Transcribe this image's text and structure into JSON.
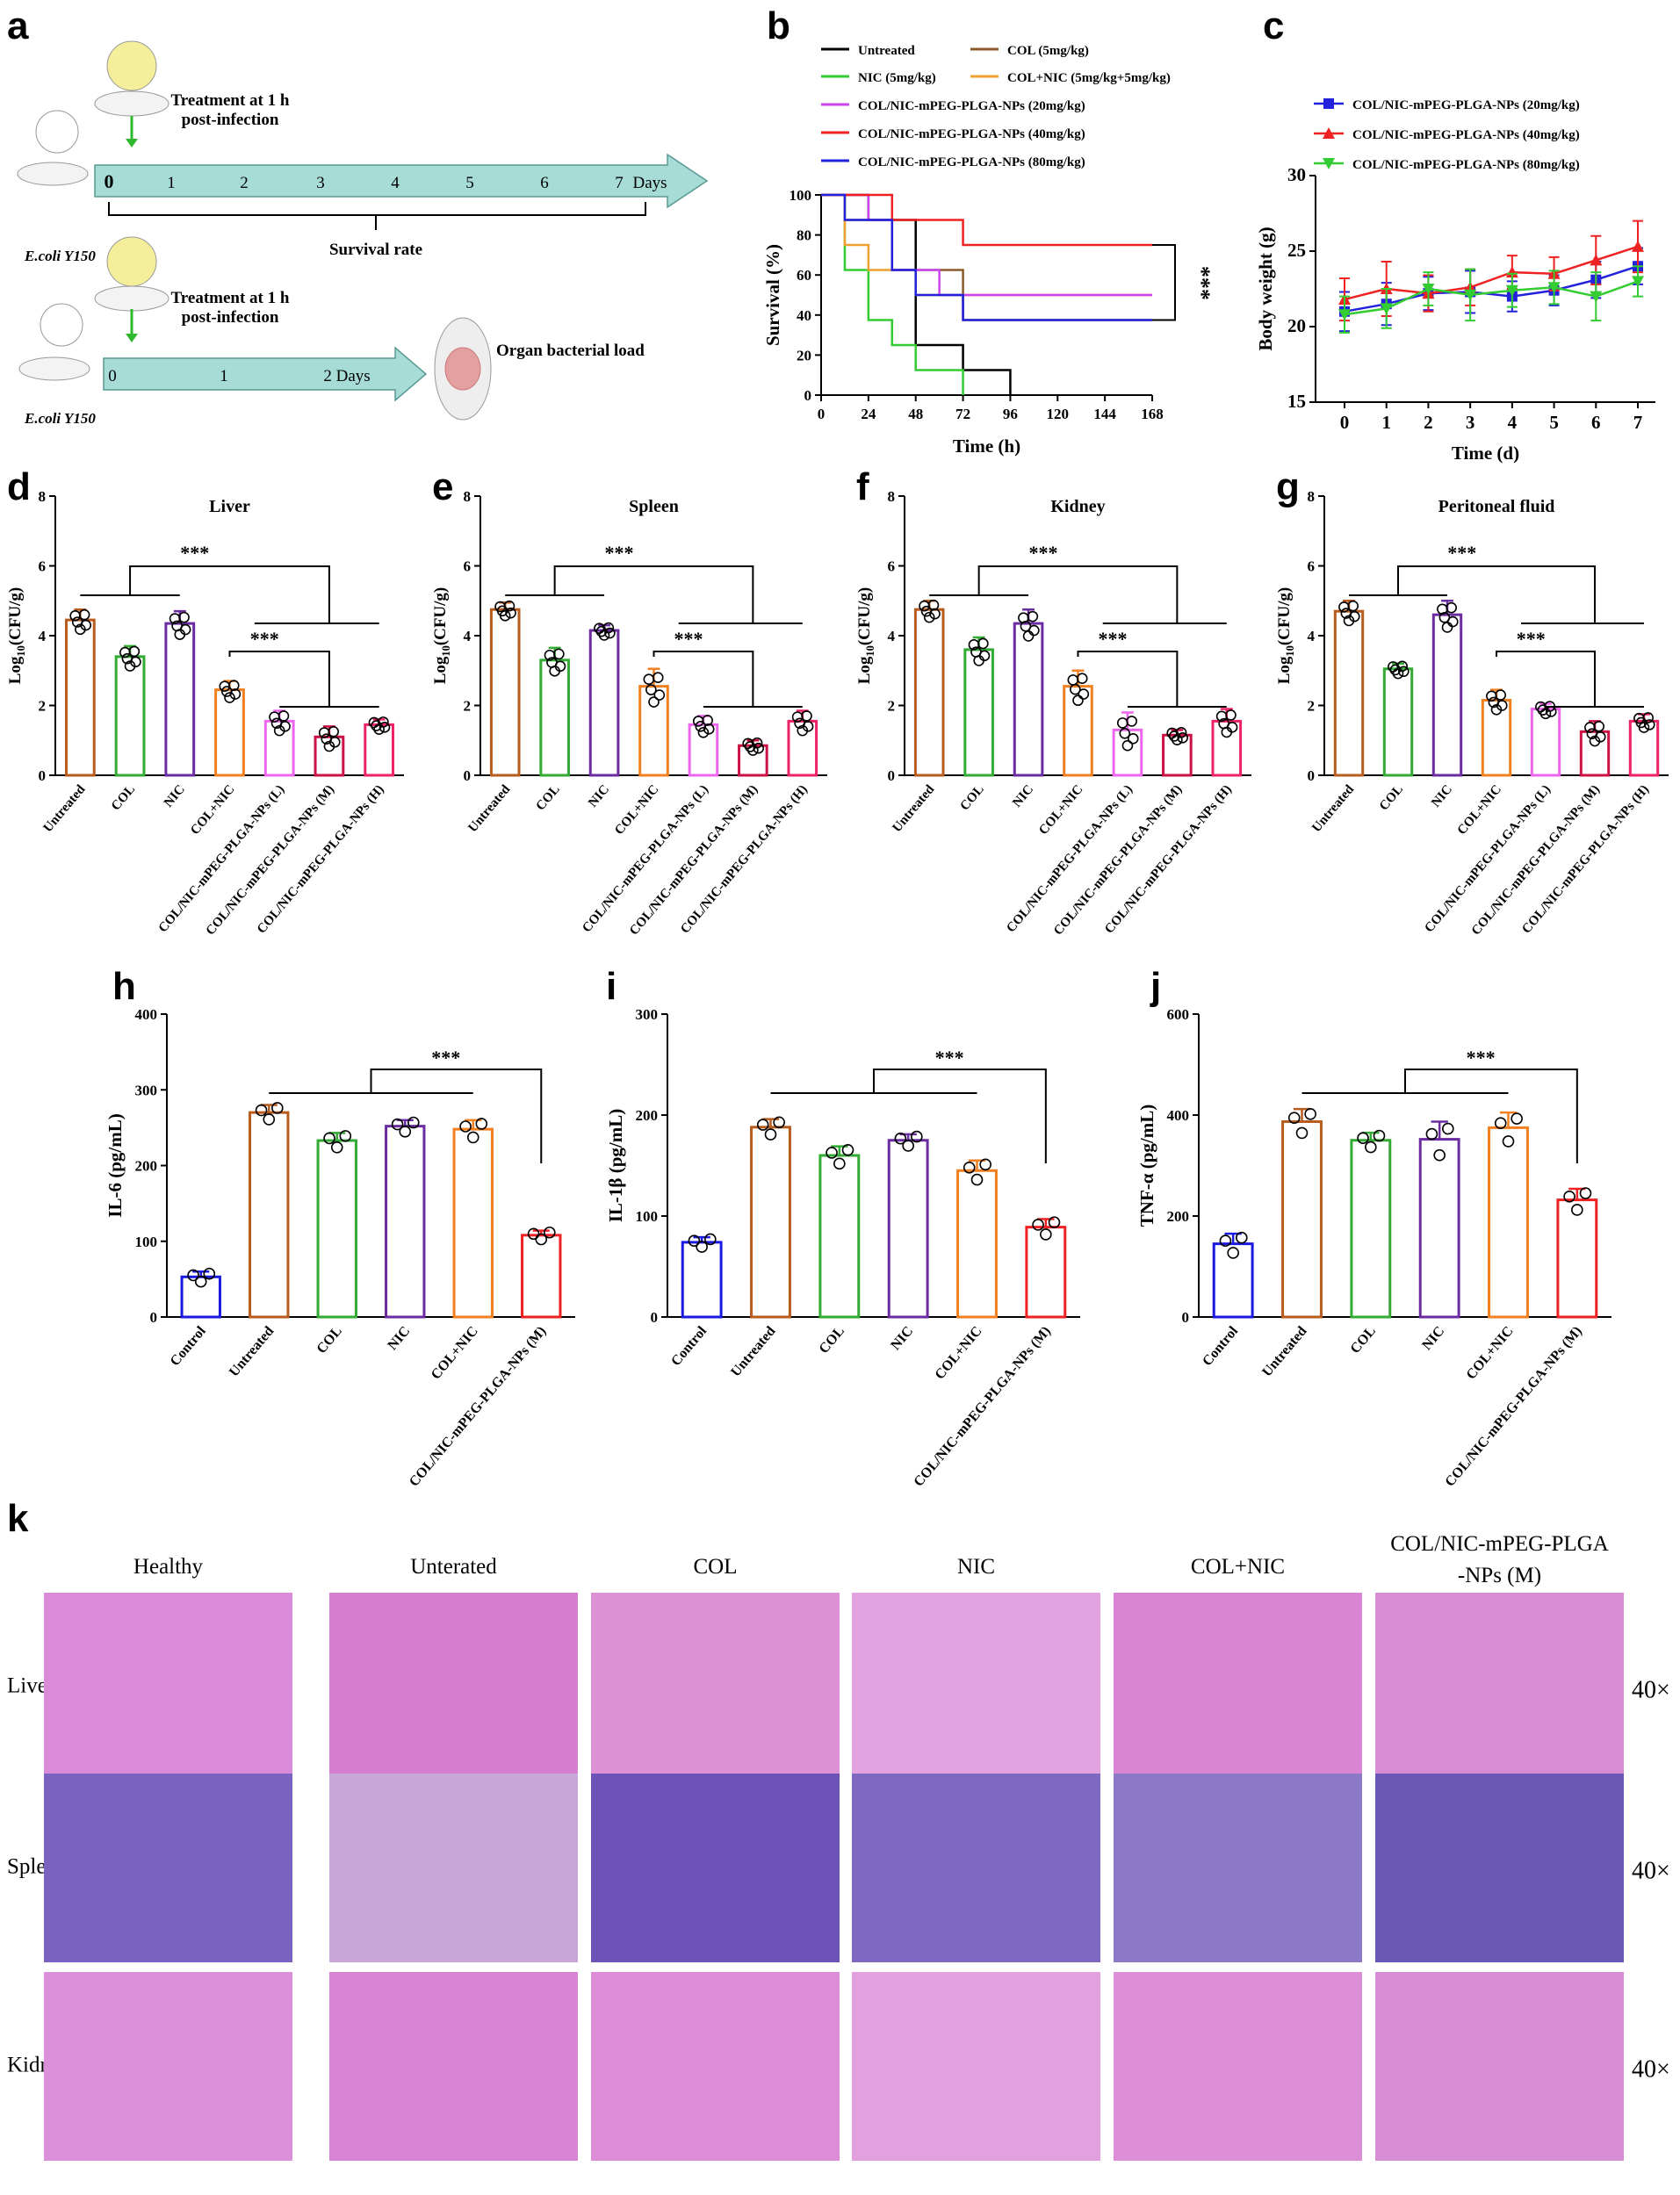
{
  "panel_labels": [
    "a",
    "b",
    "c",
    "d",
    "e",
    "f",
    "g",
    "h",
    "i",
    "j",
    "k"
  ],
  "schematic": {
    "top_treatment": "Treatment at 1 h\npost-infection",
    "top_pathogen": "E.coli Y150",
    "top_days": [
      "0",
      "1",
      "2",
      "3",
      "4",
      "5",
      "6",
      "7"
    ],
    "top_days_unit": "Days",
    "top_outcome": "Survival rate",
    "bottom_treatment": "Treatment at 1 h\npost-infection",
    "bottom_pathogen": "E.coli Y150",
    "bottom_days": [
      "0",
      "1",
      "2 Days"
    ],
    "bottom_outcome": "Organ bacterial load"
  },
  "chart_data": [
    {
      "id": "b",
      "type": "line",
      "xlabel": "Time (h)",
      "ylabel": "Survival (%)",
      "xlim": [
        0,
        168
      ],
      "ylim": [
        0,
        100
      ],
      "xticks": [
        0,
        24,
        48,
        72,
        96,
        120,
        144,
        168
      ],
      "yticks": [
        0,
        20,
        40,
        60,
        80,
        100
      ],
      "significance": "***",
      "legend_position": "top",
      "series": [
        {
          "name": "Untreated",
          "color": "#000000",
          "step": [
            [
              0,
              100
            ],
            [
              24,
              87.5
            ],
            [
              48,
              62.5
            ],
            [
              48,
              25
            ],
            [
              72,
              12.5
            ],
            [
              96,
              0
            ]
          ]
        },
        {
          "name": "COL (5mg/kg)",
          "color": "#8B5A2B",
          "step": [
            [
              0,
              100
            ],
            [
              12,
              87.5
            ],
            [
              36,
              62.5
            ],
            [
              48,
              62.5
            ],
            [
              72,
              37.5
            ],
            [
              168,
              37.5
            ]
          ]
        },
        {
          "name": "NIC (5mg/kg)",
          "color": "#33cc33",
          "step": [
            [
              0,
              100
            ],
            [
              12,
              62.5
            ],
            [
              24,
              37.5
            ],
            [
              36,
              25
            ],
            [
              48,
              12.5
            ],
            [
              72,
              0
            ]
          ]
        },
        {
          "name": "COL+NIC (5mg/kg+5mg/kg)",
          "color": "#f0a030",
          "step": [
            [
              0,
              100
            ],
            [
              12,
              75
            ],
            [
              24,
              62.5
            ],
            [
              48,
              50
            ],
            [
              72,
              50
            ],
            [
              168,
              50
            ]
          ]
        },
        {
          "name": "COL/NIC-mPEG-PLGA-NPs (20mg/kg)",
          "color": "#cc44ee",
          "step": [
            [
              0,
              100
            ],
            [
              24,
              87.5
            ],
            [
              36,
              62.5
            ],
            [
              60,
              50
            ],
            [
              168,
              50
            ]
          ]
        },
        {
          "name": "COL/NIC-mPEG-PLGA-NPs (40mg/kg)",
          "color": "#ee2222",
          "step": [
            [
              0,
              100
            ],
            [
              36,
              87.5
            ],
            [
              72,
              75
            ],
            [
              168,
              75
            ]
          ]
        },
        {
          "name": "COL/NIC-mPEG-PLGA-NPs (80mg/kg)",
          "color": "#2222dd",
          "step": [
            [
              0,
              100
            ],
            [
              12,
              87.5
            ],
            [
              36,
              62.5
            ],
            [
              48,
              50
            ],
            [
              72,
              37.5
            ],
            [
              168,
              37.5
            ]
          ]
        }
      ]
    },
    {
      "id": "c",
      "type": "line",
      "xlabel": "Time (d)",
      "ylabel": "Body weight (g)",
      "xlim": [
        0,
        7
      ],
      "ylim": [
        15,
        30
      ],
      "xticks": [
        0,
        1,
        2,
        3,
        4,
        5,
        6,
        7
      ],
      "yticks": [
        15,
        20,
        25,
        30
      ],
      "legend_position": "top",
      "series": [
        {
          "name": "COL/NIC-mPEG-PLGA-NPs (20mg/kg)",
          "color": "#2222dd",
          "marker": "square",
          "values": [
            21.0,
            21.5,
            22.2,
            22.3,
            22.0,
            22.4,
            23.1,
            24.0
          ],
          "err": [
            1.3,
            1.4,
            1.1,
            1.4,
            1.0,
            1.0,
            1.2,
            1.2
          ]
        },
        {
          "name": "COL/NIC-mPEG-PLGA-NPs (40mg/kg)",
          "color": "#ee2222",
          "marker": "triangle",
          "values": [
            21.8,
            22.5,
            22.2,
            22.6,
            23.6,
            23.5,
            24.4,
            25.3
          ],
          "err": [
            1.4,
            1.8,
            1.2,
            1.2,
            1.1,
            1.1,
            1.6,
            1.7
          ]
        },
        {
          "name": "COL/NIC-mPEG-PLGA-NPs (80mg/kg)",
          "color": "#33cc33",
          "marker": "triangle-down",
          "values": [
            20.8,
            21.2,
            22.5,
            22.1,
            22.4,
            22.6,
            22.0,
            23.0
          ],
          "err": [
            1.2,
            1.3,
            1.1,
            1.7,
            1.1,
            1.1,
            1.6,
            1.0
          ]
        }
      ]
    },
    {
      "id": "d",
      "type": "bar",
      "title": "Liver",
      "ylabel": "Log10(CFU/g)",
      "ylim": [
        0,
        8
      ],
      "yticks": [
        0,
        2,
        4,
        6,
        8
      ],
      "categories": [
        "Untreated",
        "COL",
        "NIC",
        "COL+NIC",
        "COL/NIC-mPEG-PLGA-NPs (L)",
        "COL/NIC-mPEG-PLGA-NPs (M)",
        "COL/NIC-mPEG-PLGA-NPs (H)"
      ],
      "colors": [
        "#b85c1e",
        "#33aa33",
        "#6a2ca0",
        "#f08020",
        "#ee66ee",
        "#cc1144",
        "#ee2266"
      ],
      "values": [
        4.45,
        3.4,
        4.35,
        2.45,
        1.55,
        1.1,
        1.45
      ],
      "err": [
        0.3,
        0.3,
        0.35,
        0.25,
        0.3,
        0.3,
        0.15
      ],
      "significance": [
        "***",
        "***"
      ]
    },
    {
      "id": "e",
      "type": "bar",
      "title": "Spleen",
      "ylabel": "Log10(CFU/g)",
      "ylim": [
        0,
        8
      ],
      "yticks": [
        0,
        2,
        4,
        6,
        8
      ],
      "categories": [
        "Untreated",
        "COL",
        "NIC",
        "COL+NIC",
        "COL/NIC-mPEG-PLGA-NPs (L)",
        "COL/NIC-mPEG-PLGA-NPs (M)",
        "COL/NIC-mPEG-PLGA-NPs (H)"
      ],
      "colors": [
        "#b85c1e",
        "#33aa33",
        "#6a2ca0",
        "#f08020",
        "#ee66ee",
        "#cc1144",
        "#ee2266"
      ],
      "values": [
        4.75,
        3.3,
        4.15,
        2.55,
        1.45,
        0.85,
        1.55
      ],
      "err": [
        0.2,
        0.35,
        0.15,
        0.5,
        0.25,
        0.15,
        0.3
      ],
      "significance": [
        "***",
        "***"
      ]
    },
    {
      "id": "f",
      "type": "bar",
      "title": "Kidney",
      "ylabel": "Log10(CFU/g)",
      "ylim": [
        0,
        8
      ],
      "yticks": [
        0,
        2,
        4,
        6,
        8
      ],
      "categories": [
        "Untreated",
        "COL",
        "NIC",
        "COL+NIC",
        "COL/NIC-mPEG-PLGA-NPs (L)",
        "COL/NIC-mPEG-PLGA-NPs (M)",
        "COL/NIC-mPEG-PLGA-NPs (H)"
      ],
      "colors": [
        "#b85c1e",
        "#33aa33",
        "#6a2ca0",
        "#f08020",
        "#ee66ee",
        "#cc1144",
        "#ee2266"
      ],
      "values": [
        4.75,
        3.6,
        4.35,
        2.55,
        1.3,
        1.15,
        1.55
      ],
      "err": [
        0.25,
        0.35,
        0.4,
        0.45,
        0.5,
        0.15,
        0.35
      ],
      "significance": [
        "***",
        "***"
      ]
    },
    {
      "id": "g",
      "type": "bar",
      "title": "Peritoneal fluid",
      "ylabel": "Log10(CFU/g)",
      "ylim": [
        0,
        8
      ],
      "yticks": [
        0,
        2,
        4,
        6,
        8
      ],
      "categories": [
        "Untreated",
        "COL",
        "NIC",
        "COL+NIC",
        "COL/NIC-mPEG-PLGA-NPs (L)",
        "COL/NIC-mPEG-PLGA-NPs (M)",
        "COL/NIC-mPEG-PLGA-NPs (H)"
      ],
      "colors": [
        "#b85c1e",
        "#33aa33",
        "#6a2ca0",
        "#f08020",
        "#ee66ee",
        "#cc1144",
        "#ee2266"
      ],
      "values": [
        4.7,
        3.05,
        4.6,
        2.15,
        1.9,
        1.25,
        1.55
      ],
      "err": [
        0.3,
        0.15,
        0.4,
        0.3,
        0.15,
        0.3,
        0.2
      ],
      "significance": [
        "***",
        "***"
      ]
    },
    {
      "id": "h",
      "type": "bar",
      "ylabel": "IL-6 (pg/mL)",
      "ylim": [
        0,
        400
      ],
      "yticks": [
        0,
        100,
        200,
        300,
        400
      ],
      "categories": [
        "Control",
        "Untreated",
        "COL",
        "NIC",
        "COL+NIC",
        "COL/NIC-mPEG-PLGA-NPs (M)"
      ],
      "colors": [
        "#1a1ae0",
        "#b85c1e",
        "#33aa33",
        "#6a2ca0",
        "#f08020",
        "#ee2222"
      ],
      "values": [
        53,
        270,
        233,
        252,
        248,
        108
      ],
      "err": [
        7,
        10,
        10,
        8,
        12,
        6
      ],
      "significance": [
        "***"
      ]
    },
    {
      "id": "i",
      "type": "bar",
      "ylabel": "IL-1β (pg/mL)",
      "ylim": [
        0,
        300
      ],
      "yticks": [
        0,
        100,
        200,
        300
      ],
      "categories": [
        "Control",
        "Untreated",
        "COL",
        "NIC",
        "COL+NIC",
        "COL/NIC-mPEG-PLGA-NPs (M)"
      ],
      "colors": [
        "#1a1ae0",
        "#b85c1e",
        "#33aa33",
        "#6a2ca0",
        "#f08020",
        "#ee2222"
      ],
      "values": [
        74,
        188,
        160,
        175,
        145,
        89
      ],
      "err": [
        5,
        8,
        9,
        6,
        10,
        8
      ],
      "significance": [
        "***"
      ]
    },
    {
      "id": "j",
      "type": "bar",
      "ylabel": "TNF-α (pg/mL)",
      "ylim": [
        0,
        600
      ],
      "yticks": [
        0,
        200,
        400,
        600
      ],
      "categories": [
        "Control",
        "Untreated",
        "COL",
        "NIC",
        "COL+NIC",
        "COL/NIC-mPEG-PLGA-NPs (M)"
      ],
      "colors": [
        "#1a1ae0",
        "#b85c1e",
        "#33aa33",
        "#6a2ca0",
        "#f08020",
        "#ee2222"
      ],
      "values": [
        145,
        387,
        350,
        352,
        375,
        232
      ],
      "err": [
        20,
        25,
        15,
        35,
        30,
        22
      ],
      "significance": [
        "***"
      ]
    }
  ],
  "histology": {
    "columns": [
      "Healthy",
      "Unterated",
      "COL",
      "NIC",
      "COL+NIC",
      "COL/NIC-mPEG-PLGA\n-NPs (M)"
    ],
    "rows": [
      "Liver",
      "Spleen",
      "Kidney"
    ],
    "magnification": "40×"
  }
}
